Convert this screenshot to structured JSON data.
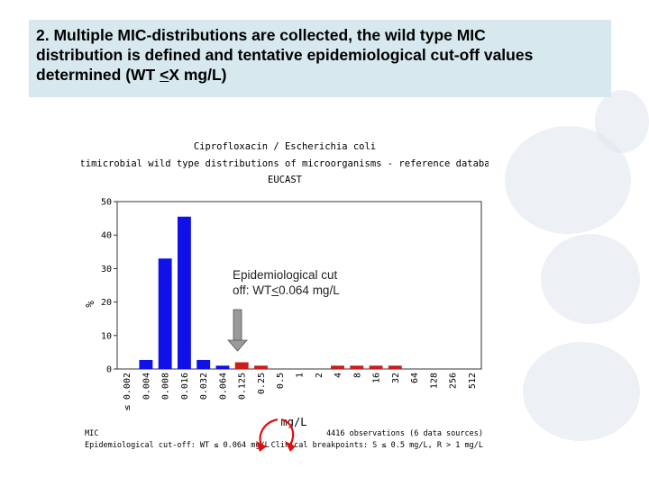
{
  "slide": {
    "heading": {
      "line1": "2. Multiple MIC-distributions are collected, the wild type MIC",
      "line2": "distribution is defined and tentative epidemiological cut-off values",
      "line3_pre": "determined (WT ",
      "line3_u": "<",
      "line3_post": "X mg/L)"
    },
    "annotation": {
      "line1": "Epidemiological cut",
      "line2_pre": "off: WT",
      "line2_u": "<",
      "line2_post": "0.064 mg/L"
    }
  },
  "chart_data": {
    "type": "bar",
    "title": "Ciprofloxacin / Escherichia coli",
    "subtitle": "Antimicrobial wild type distributions of microorganisms - reference database",
    "source_label": "EUCAST",
    "ylabel": "%",
    "xlabel": "mg/L",
    "ylim": [
      0,
      50
    ],
    "yticks": [
      0,
      10,
      20,
      30,
      40,
      50
    ],
    "categories": [
      "≤ 0.002",
      "0.004",
      "0.008",
      "0.016",
      "0.032",
      "0.064",
      "0.125",
      "0.25",
      "0.5",
      "1",
      "2",
      "4",
      "8",
      "16",
      "32",
      "64",
      "128",
      "256",
      "512"
    ],
    "values": [
      0,
      2.7,
      33,
      45.5,
      2.7,
      1.0,
      2.0,
      1.0,
      0,
      0,
      0,
      1.0,
      1.0,
      1.0,
      1.0,
      0,
      0,
      0,
      0
    ],
    "colors": {
      "wild_type": "#1010e8",
      "non_wild_type": "#cc1c1c",
      "cutoff_line": "#e01010",
      "arrow_red": "#e01010",
      "arrow_gray": "#9a9a9a"
    },
    "wild_type_through": "0.064",
    "footer": {
      "left_line1": "MIC",
      "left_line2": "Epidemiological cut-off: WT ≤ 0.064 mg/L",
      "right_line1": "4416 observations (6 data sources)",
      "right_line2": "Clinical breakpoints: S ≤ 0.5 mg/L, R > 1 mg/L"
    }
  }
}
